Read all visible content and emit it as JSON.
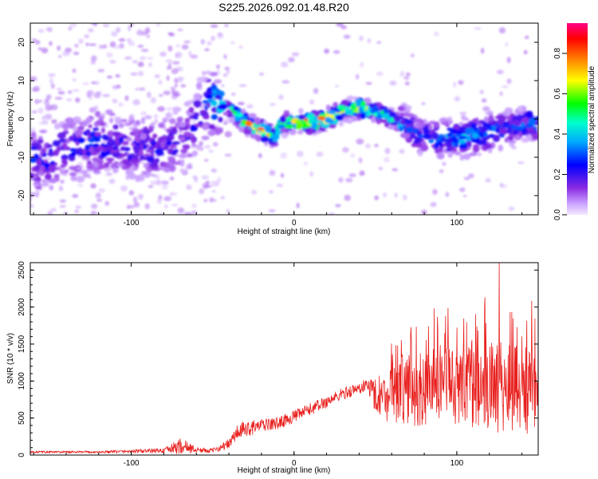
{
  "title": "S225.2026.092.01.48.R20",
  "chart_data": [
    {
      "type": "heatmap",
      "title": "S225.2026.092.01.48.R20",
      "xlabel": "Height of straight line (km)",
      "ylabel": "Frequency (Hz)",
      "xlim": [
        -162,
        150
      ],
      "ylim": [
        -25,
        25
      ],
      "xticks": [
        -100,
        0,
        100
      ],
      "yticks": [
        -20,
        -10,
        0,
        10,
        20
      ],
      "colorbar": {
        "label": "Normalized spectral amplitude",
        "range": [
          0,
          0.95
        ],
        "ticks": [
          "0.0",
          "0.2",
          "0.4",
          "0.6",
          "0.8"
        ],
        "colors": [
          "#f0d8ff",
          "#8a2be2",
          "#0000ff",
          "#00c8ff",
          "#00ff66",
          "#ffff00",
          "#ff8800",
          "#ff0000",
          "#ff0088"
        ]
      },
      "ridge_x": [
        -162,
        -140,
        -120,
        -100,
        -80,
        -65,
        -55,
        -48,
        -40,
        -30,
        -20,
        -15,
        -12,
        -8,
        -5,
        0,
        10,
        20,
        30,
        40,
        50,
        60,
        70,
        75,
        85,
        95,
        105,
        115,
        125,
        135,
        145,
        150
      ],
      "ridge_y": [
        -12,
        -8,
        -6,
        -7,
        -8,
        -4,
        3,
        5,
        3,
        -1,
        -3,
        -4,
        -5,
        -2,
        -1,
        -1,
        -1,
        0,
        2,
        3,
        2,
        0,
        -2,
        -4,
        -5,
        -5,
        -5,
        -4,
        -3,
        -2,
        -1,
        -1
      ],
      "ridge_strength": [
        0.3,
        0.25,
        0.3,
        0.25,
        0.25,
        0.2,
        0.3,
        0.45,
        0.5,
        0.75,
        0.85,
        0.75,
        0.6,
        0.65,
        0.7,
        0.85,
        0.95,
        0.9,
        0.8,
        0.85,
        0.7,
        0.5,
        0.3,
        0.3,
        0.35,
        0.4,
        0.45,
        0.4,
        0.35,
        0.3,
        0.35,
        0.35
      ]
    },
    {
      "type": "line",
      "xlabel": "Height of straight line (km)",
      "ylabel": "SNR (10 * v/v)",
      "xlim": [
        -162,
        150
      ],
      "ylim": [
        0,
        2600
      ],
      "xticks": [
        -100,
        0,
        100
      ],
      "yticks": [
        0,
        500,
        1000,
        1500,
        2000,
        2500
      ],
      "color": "#e8201e",
      "envelope_x": [
        -162,
        -120,
        -80,
        -75,
        -70,
        -65,
        -60,
        -50,
        -40,
        -35,
        -30,
        -20,
        -10,
        0,
        10,
        20,
        30,
        40,
        45,
        50,
        55,
        60,
        70,
        80,
        90,
        100,
        110,
        120,
        130,
        140,
        150
      ],
      "envelope_mean": [
        40,
        40,
        60,
        90,
        120,
        100,
        70,
        60,
        150,
        300,
        350,
        400,
        430,
        520,
        620,
        720,
        830,
        900,
        950,
        820,
        800,
        850,
        900,
        900,
        900,
        950,
        950,
        950,
        900,
        900,
        850
      ],
      "envelope_spread": [
        30,
        30,
        60,
        120,
        200,
        150,
        70,
        50,
        120,
        200,
        200,
        150,
        150,
        150,
        150,
        150,
        150,
        150,
        150,
        450,
        600,
        800,
        900,
        950,
        1000,
        1050,
        1100,
        1150,
        1100,
        1100,
        1050
      ],
      "peaks": [
        {
          "x": 126,
          "y": 2600
        },
        {
          "x": 146,
          "y": 2080
        },
        {
          "x": 117,
          "y": 2000
        },
        {
          "x": 86,
          "y": 1980
        },
        {
          "x": 100,
          "y": 1720
        },
        {
          "x": 113,
          "y": 1680
        },
        {
          "x": 140,
          "y": 1600
        },
        {
          "x": 66,
          "y": 1550
        }
      ]
    }
  ]
}
